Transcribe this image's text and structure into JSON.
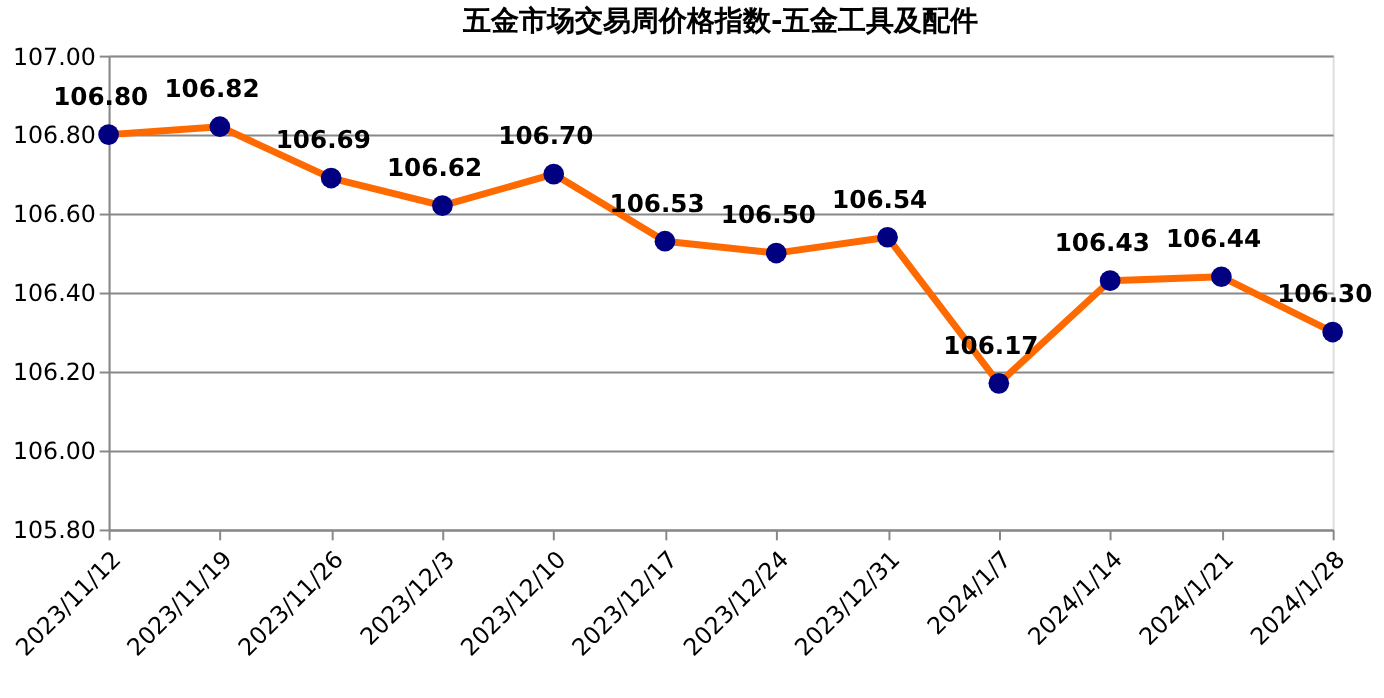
{
  "chart_data": {
    "type": "line",
    "title": "五金市场交易周价格指数-五金工具及配件",
    "categories": [
      "2023/11/12",
      "2023/11/19",
      "2023/11/26",
      "2023/12/3",
      "2023/12/10",
      "2023/12/17",
      "2023/12/24",
      "2023/12/31",
      "2024/1/7",
      "2024/1/14",
      "2024/1/21",
      "2024/1/28"
    ],
    "series": [
      {
        "color": "#ff6a00",
        "values": [
          106.8,
          106.82,
          106.69,
          106.62,
          106.7,
          106.53,
          106.5,
          106.54,
          106.17,
          106.43,
          106.44,
          106.3
        ],
        "value_labels": [
          "106.80",
          "106.82",
          "106.69",
          "106.62",
          "106.70",
          "106.53",
          "106.50",
          "106.54",
          "106.17",
          "106.43",
          "106.44",
          "106.30"
        ],
        "colors": [
          "#000080",
          "#000080",
          "#000080",
          "#000080",
          "#000080",
          "#000080",
          "#000080",
          "#000080",
          "#000080",
          "#000080",
          "#000080",
          "#000080"
        ]
      }
    ],
    "ylim": [
      105.8,
      107.0
    ],
    "yticks": [
      {
        "value": 105.8,
        "label": "105.80"
      },
      {
        "value": 106.0,
        "label": "106.00"
      },
      {
        "value": 106.2,
        "label": "106.20"
      },
      {
        "value": 106.4,
        "label": "106.40"
      },
      {
        "value": 106.6,
        "label": "106.60"
      },
      {
        "value": 106.8,
        "label": "106.80"
      },
      {
        "value": 107.0,
        "label": "107.00"
      }
    ],
    "grid": "y",
    "marker": "circle",
    "line_style": "solid"
  }
}
